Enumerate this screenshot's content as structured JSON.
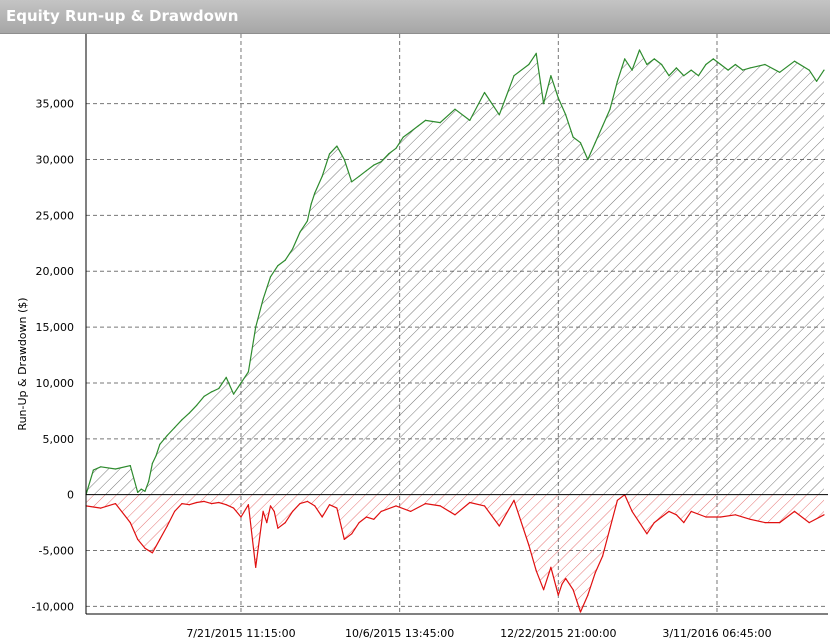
{
  "window": {
    "title": "Equity Run-up & Drawdown"
  },
  "chart_data": {
    "type": "area",
    "title": "Equity Run-up & Drawdown",
    "xlabel": "",
    "ylabel": "Run-Up & Drawdown ($)",
    "ylim": [
      -10500,
      39800
    ],
    "yticks": [
      {
        "value": 35000,
        "label": "35,000"
      },
      {
        "value": 30000,
        "label": "30,000"
      },
      {
        "value": 25000,
        "label": "25,000"
      },
      {
        "value": 20000,
        "label": "20,000"
      },
      {
        "value": 15000,
        "label": "15,000"
      },
      {
        "value": 10000,
        "label": "10,000"
      },
      {
        "value": 5000,
        "label": "5,000"
      },
      {
        "value": 0,
        "label": "0"
      },
      {
        "value": -5000,
        "label": "-5,000"
      },
      {
        "value": -10000,
        "label": "-10,000"
      }
    ],
    "xticks": [
      {
        "pos": 0.21,
        "label": "7/21/2015 11:15:00"
      },
      {
        "pos": 0.425,
        "label": "10/6/2015 13:45:00"
      },
      {
        "pos": 0.64,
        "label": "12/22/2015 21:00:00"
      },
      {
        "pos": 0.855,
        "label": "3/11/2016 06:45:00"
      }
    ],
    "grid": true,
    "colors": {
      "runup": "#2e8b2e",
      "drawdown": "#e01010",
      "grid": "#777777"
    },
    "series": [
      {
        "name": "",
        "color": "#2e8b2e",
        "x": [
          0,
          0.01,
          0.02,
          0.04,
          0.06,
          0.07,
          0.075,
          0.08,
          0.085,
          0.09,
          0.095,
          0.1,
          0.11,
          0.12,
          0.13,
          0.14,
          0.15,
          0.16,
          0.17,
          0.18,
          0.19,
          0.2,
          0.21,
          0.22,
          0.23,
          0.24,
          0.25,
          0.26,
          0.27,
          0.28,
          0.29,
          0.3,
          0.305,
          0.31,
          0.32,
          0.33,
          0.34,
          0.35,
          0.36,
          0.37,
          0.38,
          0.39,
          0.4,
          0.41,
          0.42,
          0.43,
          0.44,
          0.45,
          0.46,
          0.48,
          0.5,
          0.52,
          0.54,
          0.56,
          0.58,
          0.6,
          0.61,
          0.62,
          0.63,
          0.64,
          0.65,
          0.66,
          0.67,
          0.68,
          0.69,
          0.7,
          0.71,
          0.72,
          0.73,
          0.74,
          0.75,
          0.76,
          0.77,
          0.78,
          0.79,
          0.8,
          0.81,
          0.82,
          0.83,
          0.84,
          0.85,
          0.86,
          0.87,
          0.88,
          0.89,
          0.9,
          0.92,
          0.94,
          0.96,
          0.98,
          0.99,
          1.0
        ],
        "values": [
          0,
          2200,
          2500,
          2300,
          2600,
          200,
          500,
          300,
          1200,
          2800,
          3500,
          4500,
          5300,
          6000,
          6700,
          7300,
          8000,
          8800,
          9200,
          9500,
          10500,
          9000,
          10000,
          11000,
          15000,
          17500,
          19500,
          20500,
          21000,
          22000,
          23500,
          24500,
          26000,
          27000,
          28500,
          30500,
          31200,
          30000,
          28000,
          28500,
          29000,
          29500,
          29800,
          30500,
          31000,
          32000,
          32500,
          33000,
          33500,
          33300,
          34500,
          33500,
          36000,
          34000,
          37500,
          38500,
          39500,
          35000,
          37500,
          35500,
          34000,
          32000,
          31500,
          30000,
          31500,
          33000,
          34500,
          37000,
          39000,
          38000,
          39800,
          38500,
          39000,
          38500,
          37500,
          38200,
          37500,
          38000,
          37500,
          38500,
          39000,
          38500,
          38000,
          38500,
          38000,
          38200,
          38500,
          37800,
          38800,
          38000,
          37000,
          38000
        ]
      },
      {
        "name": "",
        "color": "#e01010",
        "x": [
          0,
          0.02,
          0.04,
          0.06,
          0.07,
          0.08,
          0.09,
          0.1,
          0.11,
          0.12,
          0.13,
          0.14,
          0.15,
          0.16,
          0.17,
          0.18,
          0.19,
          0.2,
          0.21,
          0.22,
          0.23,
          0.24,
          0.245,
          0.25,
          0.255,
          0.26,
          0.27,
          0.28,
          0.29,
          0.3,
          0.31,
          0.32,
          0.33,
          0.34,
          0.35,
          0.36,
          0.37,
          0.38,
          0.39,
          0.4,
          0.42,
          0.44,
          0.46,
          0.48,
          0.5,
          0.52,
          0.54,
          0.56,
          0.58,
          0.6,
          0.61,
          0.62,
          0.63,
          0.64,
          0.645,
          0.65,
          0.66,
          0.67,
          0.68,
          0.69,
          0.7,
          0.71,
          0.72,
          0.73,
          0.74,
          0.75,
          0.76,
          0.77,
          0.78,
          0.79,
          0.8,
          0.81,
          0.82,
          0.84,
          0.86,
          0.88,
          0.9,
          0.92,
          0.94,
          0.96,
          0.98,
          1.0
        ],
        "values": [
          -1000,
          -1200,
          -800,
          -2500,
          -4000,
          -4800,
          -5200,
          -4000,
          -2800,
          -1500,
          -800,
          -900,
          -700,
          -600,
          -800,
          -700,
          -900,
          -1200,
          -2000,
          -900,
          -6500,
          -1500,
          -2500,
          -1000,
          -1500,
          -3000,
          -2500,
          -1500,
          -800,
          -600,
          -1000,
          -2000,
          -900,
          -1200,
          -4000,
          -3500,
          -2500,
          -2000,
          -2200,
          -1500,
          -1000,
          -1500,
          -800,
          -1000,
          -1800,
          -700,
          -1000,
          -2800,
          -500,
          -4500,
          -6800,
          -8500,
          -6500,
          -9000,
          -8000,
          -7500,
          -8500,
          -10500,
          -9000,
          -7000,
          -5500,
          -3000,
          -500,
          0,
          -1500,
          -2500,
          -3500,
          -2500,
          -2000,
          -1500,
          -1800,
          -2500,
          -1500,
          -2000,
          -2000,
          -1800,
          -2200,
          -2500,
          -2500,
          -1500,
          -2500,
          -1800
        ]
      }
    ]
  }
}
